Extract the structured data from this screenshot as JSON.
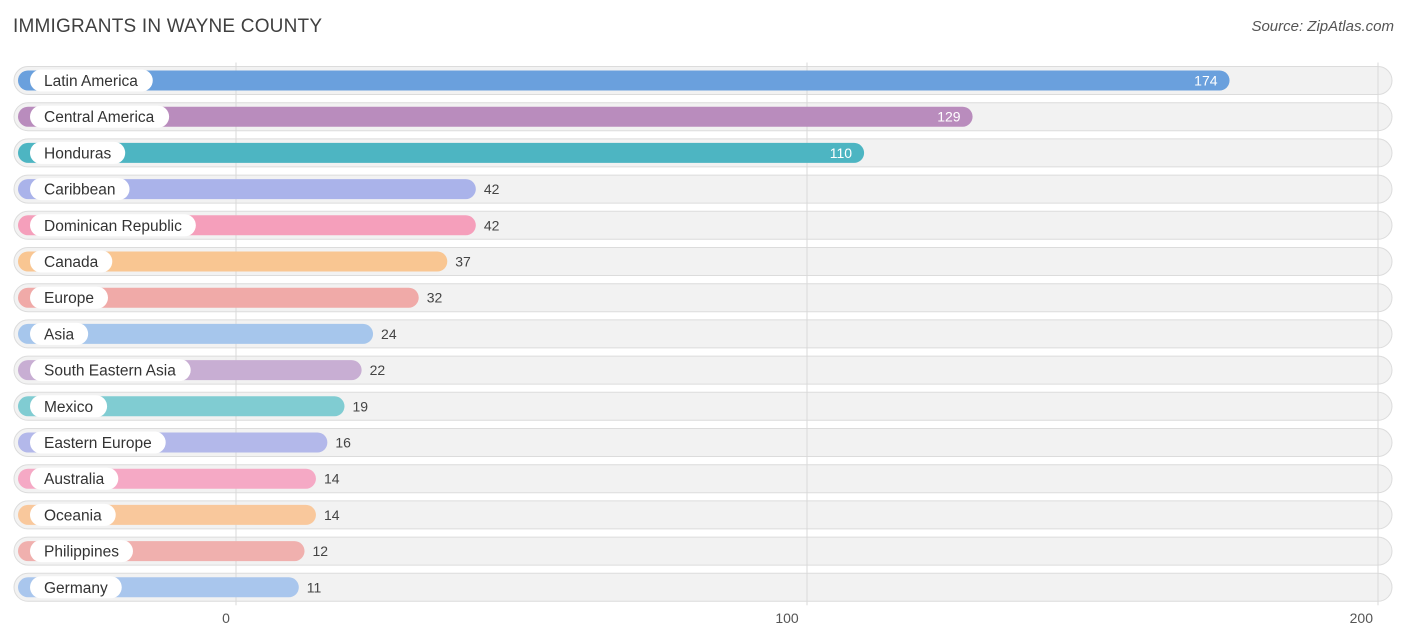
{
  "header": {
    "title": "IMMIGRANTS IN WAYNE COUNTY",
    "source": "Source: ZipAtlas.com"
  },
  "chart_data": {
    "type": "bar",
    "orientation": "horizontal",
    "title": "IMMIGRANTS IN WAYNE COUNTY",
    "xlim": [
      0,
      200
    ],
    "x_ticks": [
      0,
      100,
      200
    ],
    "grid": true,
    "categories": [
      "Latin America",
      "Central America",
      "Honduras",
      "Caribbean",
      "Dominican Republic",
      "Canada",
      "Europe",
      "Asia",
      "South Eastern Asia",
      "Mexico",
      "Eastern Europe",
      "Australia",
      "Oceania",
      "Philippines",
      "Germany"
    ],
    "values": [
      174,
      129,
      110,
      42,
      42,
      37,
      32,
      24,
      22,
      19,
      16,
      14,
      14,
      12,
      11
    ],
    "colors": [
      "#6aa0dd",
      "#b98cbd",
      "#4db5c2",
      "#aab3ea",
      "#f59fbb",
      "#f9c692",
      "#f0aaa8",
      "#a6c6ec",
      "#c8aed3",
      "#80ccd2",
      "#b3b8ea",
      "#f5a9c5",
      "#f9c89c",
      "#f0b0ae",
      "#a9c6ed"
    ]
  }
}
